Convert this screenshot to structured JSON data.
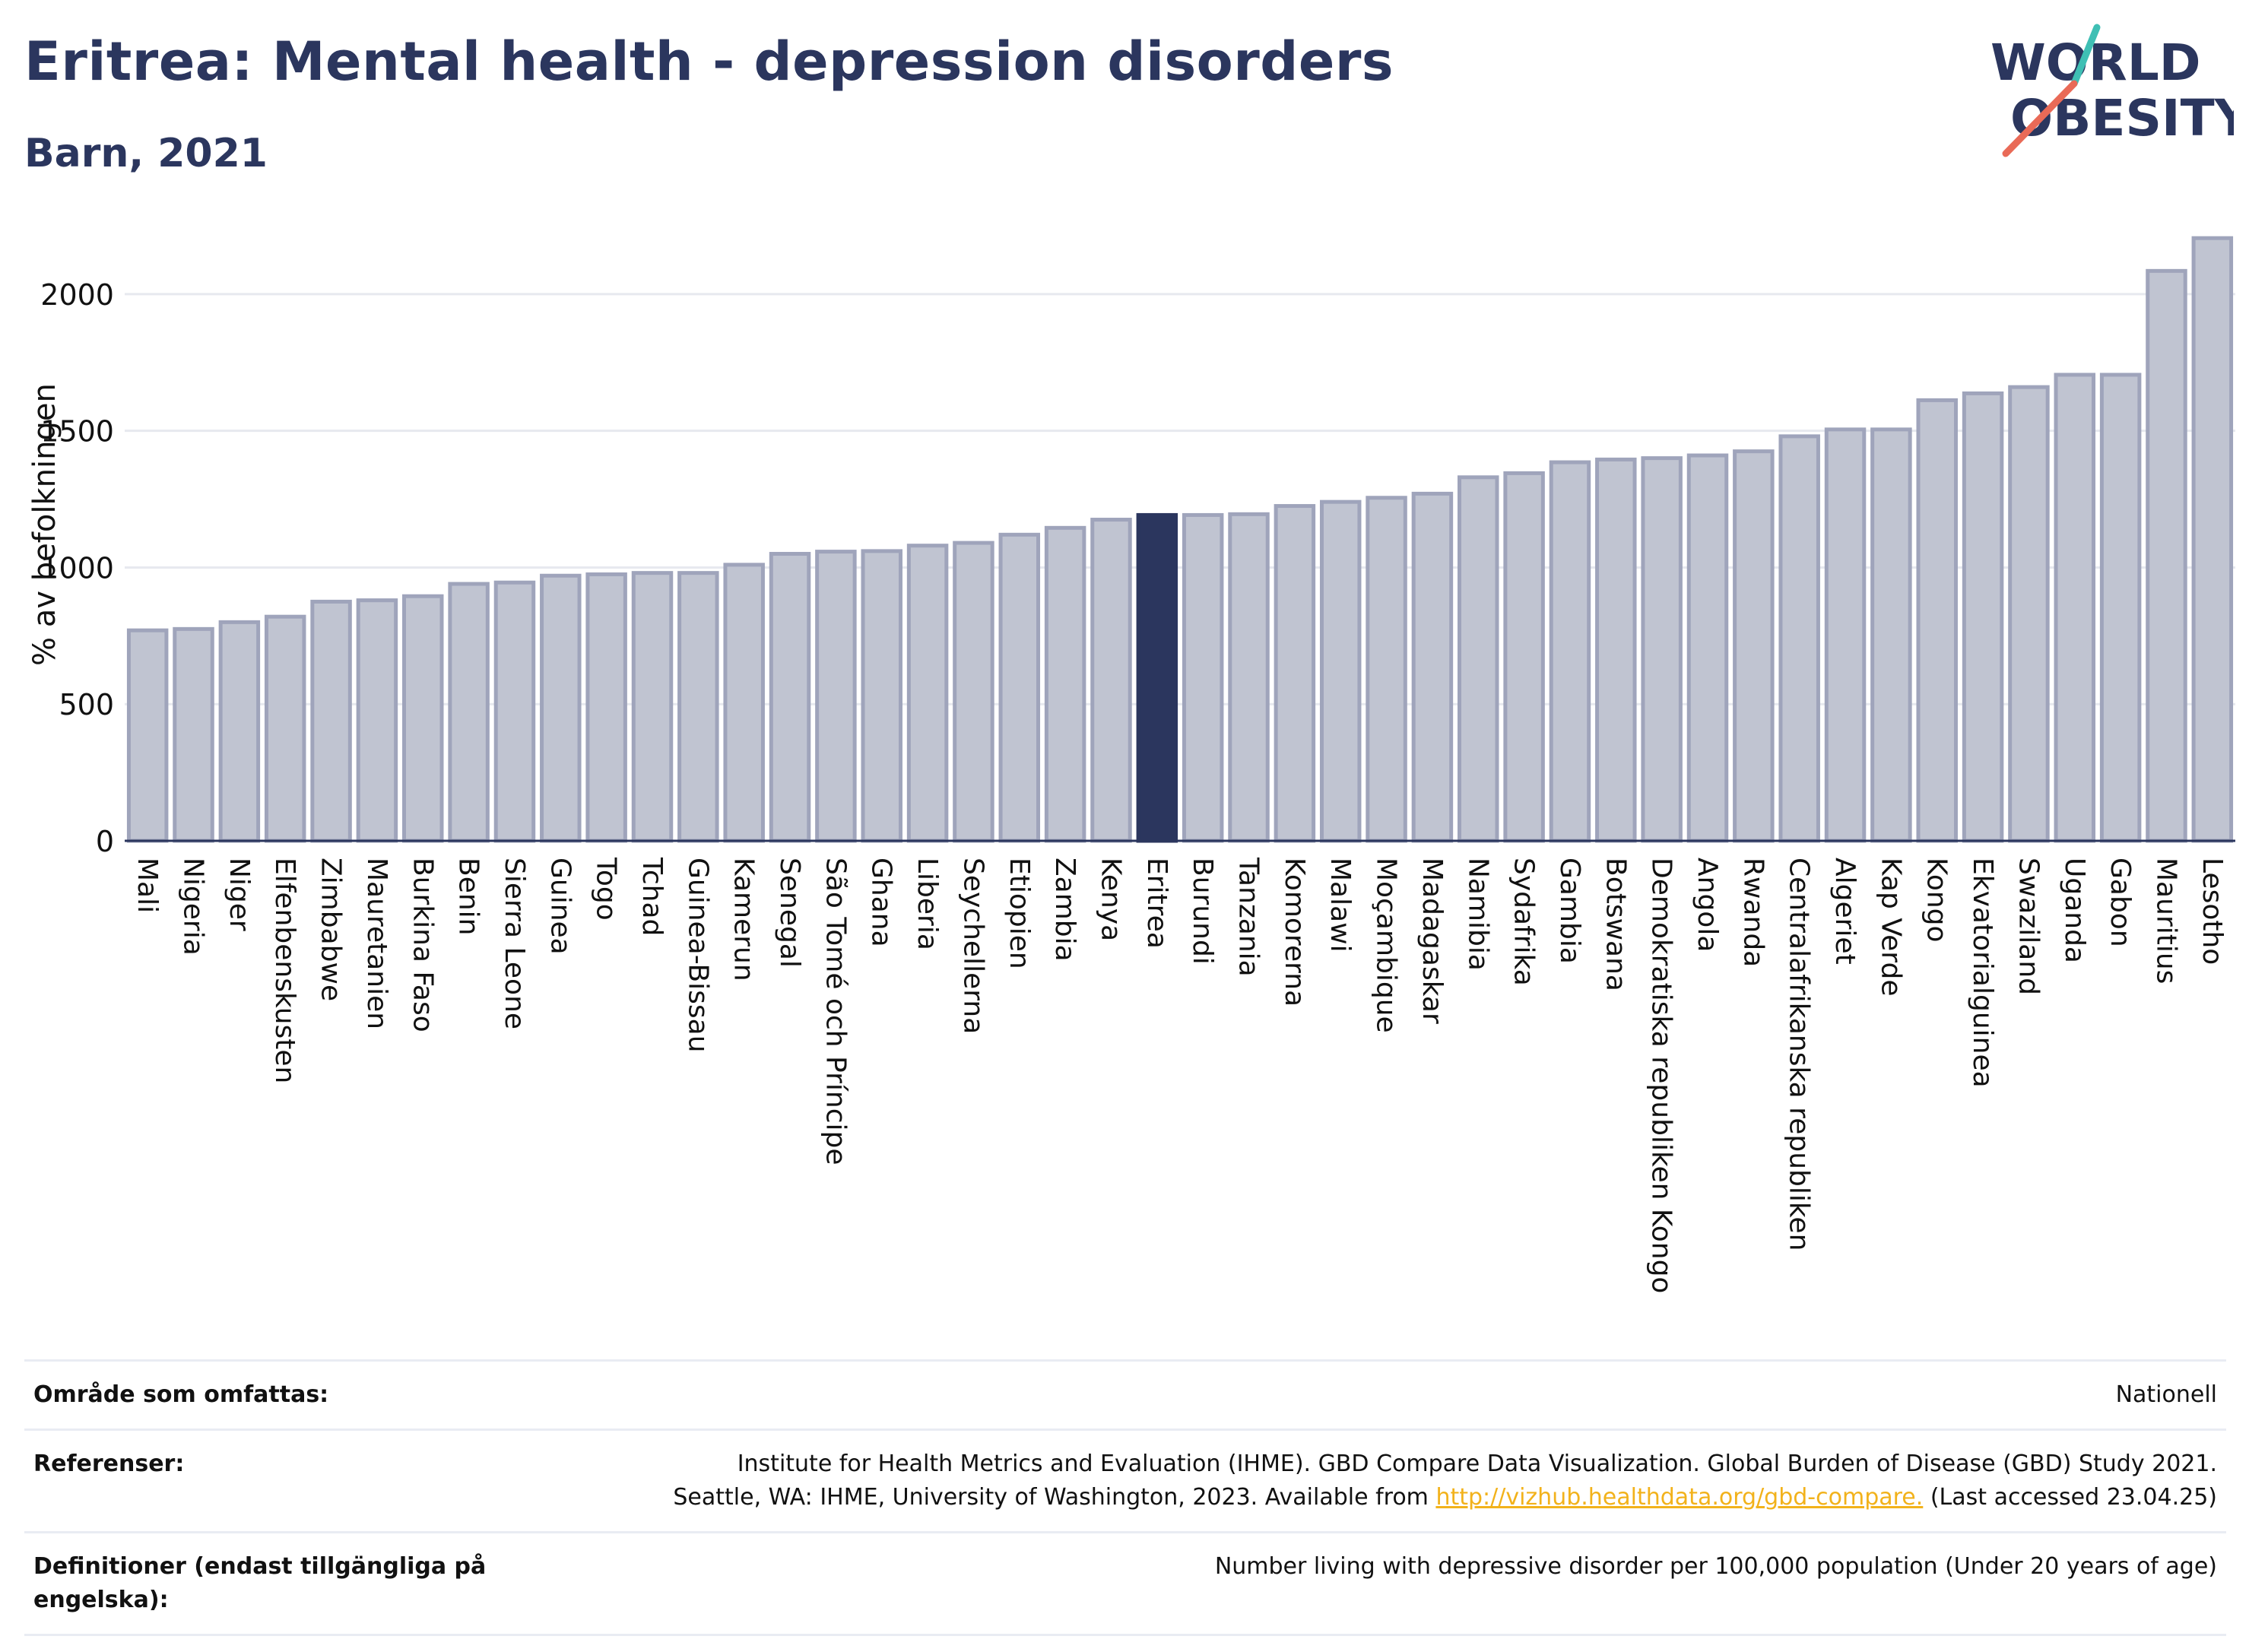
{
  "header": {
    "title": "Eritrea: Mental health - depression disorders",
    "subtitle": "Barn, 2021"
  },
  "logo": {
    "line1": "WORLD",
    "line2": "OBESITY"
  },
  "colors": {
    "bar": "#c0c4d1",
    "bar_stroke": "#9fa4bb",
    "highlight": "#2b365e",
    "title": "#2b365e",
    "grid": "#e7e9ef",
    "link": "#f2b21b",
    "logo_teal": "#3fbfb4",
    "logo_red": "#e96a57"
  },
  "chart_data": {
    "type": "bar",
    "title": "Eritrea: Mental health - depression disorders",
    "subtitle": "Barn, 2021",
    "ylabel": "% av befolkningen",
    "xlabel": "",
    "ylim": [
      0,
      2200
    ],
    "yticks": [
      0,
      500,
      1000,
      1500,
      2000
    ],
    "grid": true,
    "highlight": "Eritrea",
    "categories": [
      "Mali",
      "Nigeria",
      "Niger",
      "Elfenbenskusten",
      "Zimbabwe",
      "Mauretanien",
      "Burkina Faso",
      "Benin",
      "Sierra Leone",
      "Guinea",
      "Togo",
      "Tchad",
      "Guinea-Bissau",
      "Kamerun",
      "Senegal",
      "São Tomé och Príncipe",
      "Ghana",
      "Liberia",
      "Seychellerna",
      "Etiopien",
      "Zambia",
      "Kenya",
      "Eritrea",
      "Burundi",
      "Tanzania",
      "Komorerna",
      "Malawi",
      "Moçambique",
      "Madagaskar",
      "Namibia",
      "Sydafrika",
      "Gambia",
      "Botswana",
      "Demokratiska republiken Kongo",
      "Angola",
      "Rwanda",
      "Centralafrikanska republiken",
      "Algeriet",
      "Kap Verde",
      "Kongo",
      "Ekvatorialguinea",
      "Swaziland",
      "Uganda",
      "Gabon",
      "Mauritius",
      "Lesotho"
    ],
    "values": [
      770,
      775,
      800,
      820,
      875,
      880,
      895,
      940,
      945,
      970,
      975,
      980,
      980,
      1010,
      1050,
      1058,
      1060,
      1080,
      1090,
      1120,
      1145,
      1175,
      1192,
      1192,
      1195,
      1225,
      1240,
      1255,
      1270,
      1330,
      1345,
      1385,
      1395,
      1400,
      1410,
      1425,
      1480,
      1505,
      1505,
      1612,
      1637,
      1660,
      1705,
      1705,
      2085,
      2205
    ]
  },
  "info": {
    "area_label": "Område som omfattas:",
    "area_value": "Nationell",
    "refs_label": "Referenser:",
    "refs_line1": "Institute for Health Metrics and Evaluation (IHME). GBD Compare Data Visualization. Global Burden of Disease (GBD) Study 2021.",
    "refs_line2_pre": "Seattle, WA: IHME, University of Washington, 2023. Available from ",
    "refs_link": "http://vizhub.healthdata.org/gbd-compare.",
    "refs_line2_post": " (Last accessed 23.04.25)",
    "def_label": "Definitioner (endast tillgängliga på engelska):",
    "def_value": "Number living with depressive disorder per 100,000 population (Under 20 years of age)"
  }
}
